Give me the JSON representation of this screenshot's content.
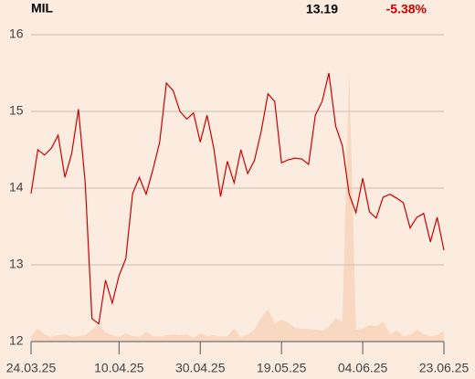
{
  "chart_data": {
    "type": "line",
    "title": "MIL",
    "last": "13.19",
    "change": "-5.38%",
    "price": {
      "name": "price",
      "color": "#cc0000",
      "values": [
        13.93,
        14.5,
        14.43,
        14.52,
        14.69,
        14.14,
        14.45,
        15.03,
        14.07,
        12.3,
        12.23,
        12.8,
        12.5,
        12.86,
        13.08,
        13.93,
        14.14,
        13.92,
        14.24,
        14.6,
        15.37,
        15.27,
        15.0,
        14.9,
        14.98,
        14.6,
        14.95,
        14.52,
        13.89,
        14.35,
        14.07,
        14.5,
        14.19,
        14.36,
        14.74,
        15.23,
        15.13,
        14.33,
        14.37,
        14.39,
        14.38,
        14.31,
        14.95,
        15.13,
        15.5,
        14.81,
        14.55,
        13.92,
        13.68,
        14.13,
        13.69,
        13.61,
        13.88,
        13.92,
        13.87,
        13.81,
        13.48,
        13.62,
        13.67,
        13.3,
        13.62,
        13.19
      ]
    },
    "volume": {
      "name": "volume",
      "color": "#f8d8c0",
      "values": [
        6,
        14,
        8,
        5,
        7,
        8,
        5,
        6,
        7,
        13,
        18,
        10,
        7,
        5,
        9,
        6,
        5,
        11,
        6,
        5,
        7,
        8,
        7,
        8,
        4,
        9,
        6,
        7,
        5,
        6,
        14,
        5,
        8,
        13,
        26,
        36,
        20,
        24,
        21,
        15,
        14,
        14,
        13,
        12,
        16,
        26,
        22,
        300,
        13,
        14,
        18,
        17,
        22,
        8,
        12,
        6,
        7,
        13,
        8,
        6,
        7,
        12
      ]
    },
    "xlim": [
      0,
      61
    ],
    "xticks": [
      {
        "value": 0,
        "label": "24.03.25"
      },
      {
        "value": 13,
        "label": "10.04.25"
      },
      {
        "value": 25,
        "label": "30.04.25"
      },
      {
        "value": 37,
        "label": "19.05.25"
      },
      {
        "value": 49,
        "label": "04.06.25"
      },
      {
        "value": 61,
        "label": "23.06.25"
      }
    ],
    "ylim": [
      12,
      16
    ],
    "yticks": [
      12,
      13,
      14,
      15,
      16
    ],
    "grid": true
  }
}
